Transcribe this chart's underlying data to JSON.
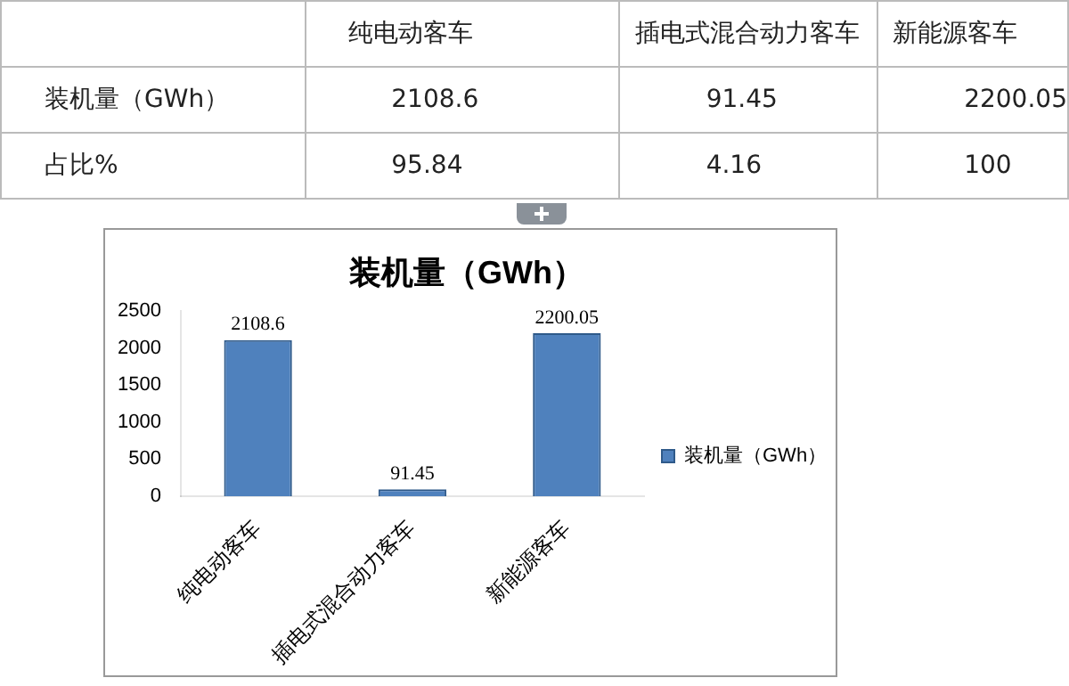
{
  "chart_data": [
    {
      "type": "other",
      "categories": [
        "纯电动客车",
        "插电式混合动力客车",
        "新能源客车"
      ],
      "series": [
        {
          "name": "装机量（GWh）",
          "values": [
            2108.6,
            91.45,
            2200.05
          ]
        },
        {
          "name": "占比%",
          "values": [
            95.84,
            4.16,
            100
          ]
        }
      ],
      "data_labels": true
    },
    {
      "type": "bar",
      "title": "装机量（GWh）",
      "categories": [
        "纯电动客车",
        "插电式混合动力客车",
        "新能源客车"
      ],
      "series": [
        {
          "name": "装机量（GWh）",
          "color": "#4f81bd",
          "values": [
            2108.6,
            91.45,
            2200.05
          ]
        }
      ],
      "ylim": [
        0,
        2500
      ],
      "yticks": [
        0,
        500,
        1000,
        1500,
        2000,
        2500
      ],
      "data_labels": true,
      "legend": "right",
      "grid": false
    }
  ]
}
